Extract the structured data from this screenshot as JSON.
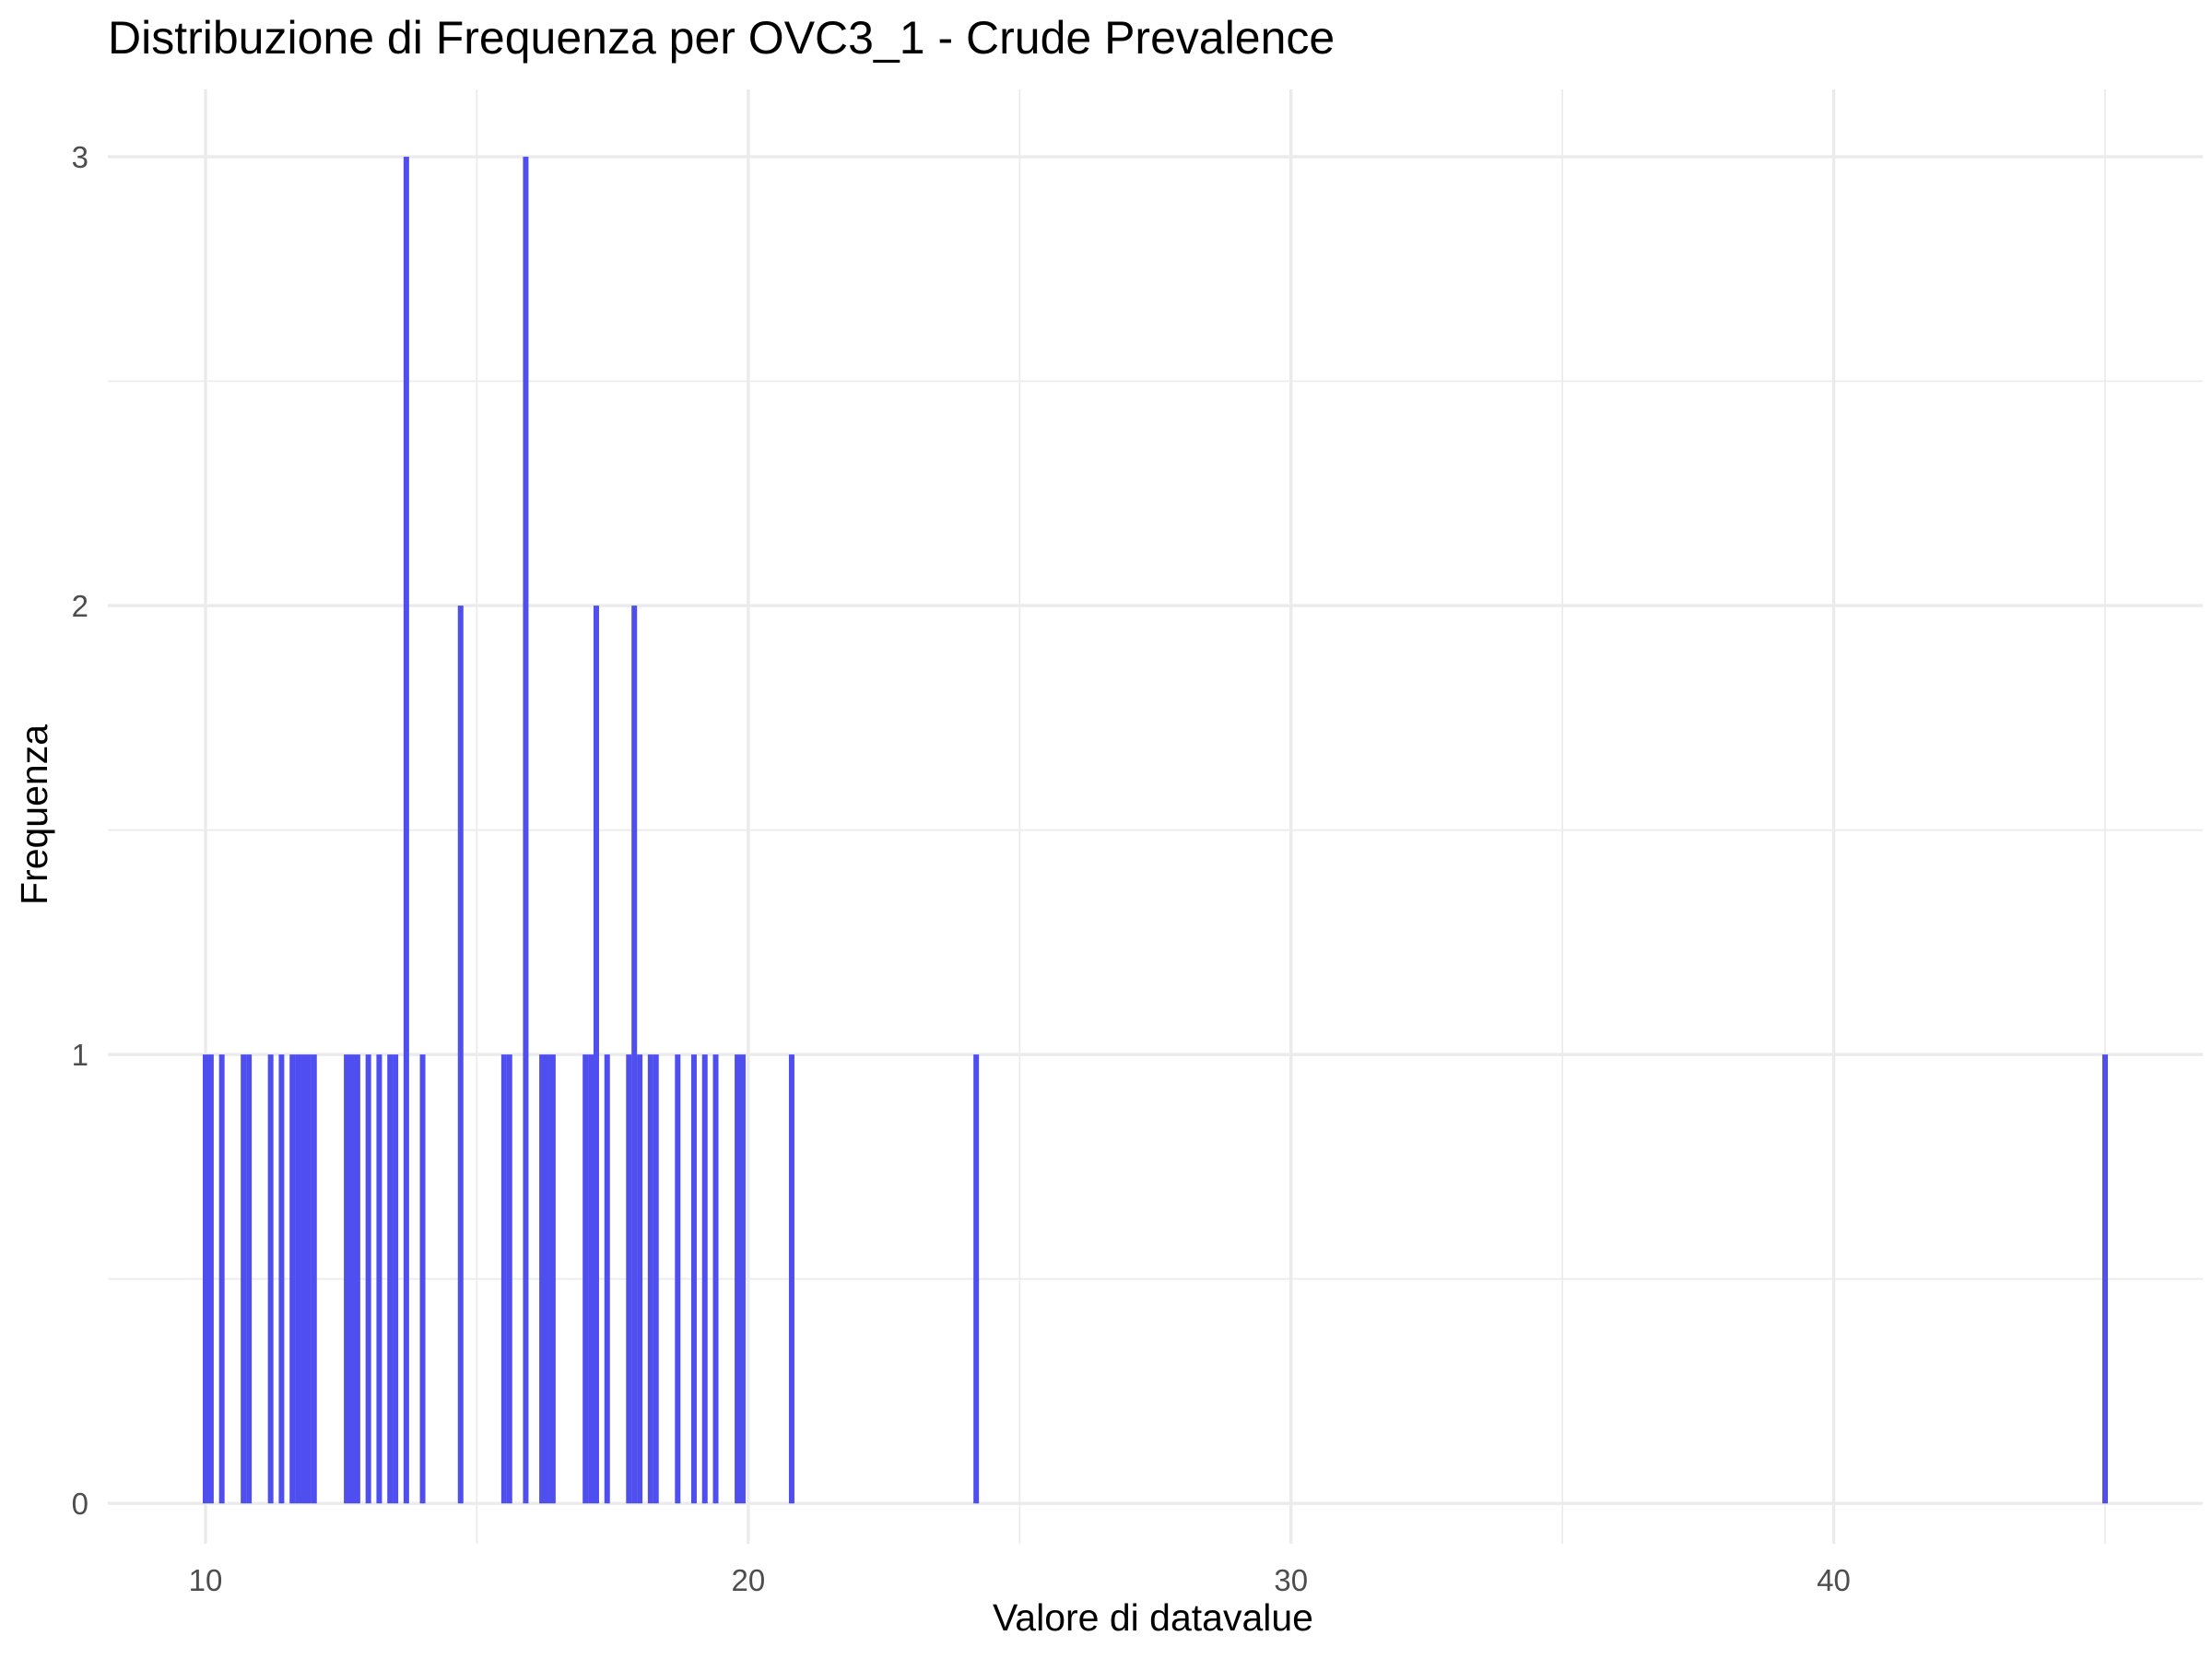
{
  "chart_data": {
    "type": "bar",
    "title": "Distribuzione di Frequenza per OVC3_1 - Crude Prevalence",
    "xlabel": "Valore di datavalue",
    "ylabel": "Frequenza",
    "xlim": [
      8.2,
      46.8
    ],
    "ylim": [
      -0.09,
      3.15
    ],
    "x_ticks": [
      10,
      20,
      30,
      40
    ],
    "x_tick_labels": [
      "10",
      "20",
      "30",
      "40"
    ],
    "y_ticks": [
      0,
      1,
      2,
      3
    ],
    "y_tick_labels": [
      "0",
      "1",
      "2",
      "3"
    ],
    "bar_color": "#4f4ff0",
    "grid": true,
    "bars": [
      {
        "x": 10.0,
        "count": 1
      },
      {
        "x": 10.1,
        "count": 1
      },
      {
        "x": 10.3,
        "count": 1
      },
      {
        "x": 10.7,
        "count": 1
      },
      {
        "x": 10.8,
        "count": 1
      },
      {
        "x": 11.2,
        "count": 1
      },
      {
        "x": 11.4,
        "count": 1
      },
      {
        "x": 11.6,
        "count": 1
      },
      {
        "x": 11.7,
        "count": 1
      },
      {
        "x": 11.8,
        "count": 1
      },
      {
        "x": 11.9,
        "count": 1
      },
      {
        "x": 12.0,
        "count": 1
      },
      {
        "x": 12.6,
        "count": 1
      },
      {
        "x": 12.7,
        "count": 1
      },
      {
        "x": 12.8,
        "count": 1
      },
      {
        "x": 13.0,
        "count": 1
      },
      {
        "x": 13.2,
        "count": 1
      },
      {
        "x": 13.4,
        "count": 1
      },
      {
        "x": 13.5,
        "count": 1
      },
      {
        "x": 13.7,
        "count": 3
      },
      {
        "x": 14.0,
        "count": 1
      },
      {
        "x": 14.7,
        "count": 2
      },
      {
        "x": 15.5,
        "count": 1
      },
      {
        "x": 15.6,
        "count": 1
      },
      {
        "x": 15.9,
        "count": 3
      },
      {
        "x": 16.2,
        "count": 1
      },
      {
        "x": 16.3,
        "count": 1
      },
      {
        "x": 16.4,
        "count": 1
      },
      {
        "x": 17.0,
        "count": 1
      },
      {
        "x": 17.1,
        "count": 1
      },
      {
        "x": 17.2,
        "count": 2
      },
      {
        "x": 17.4,
        "count": 1
      },
      {
        "x": 17.8,
        "count": 1
      },
      {
        "x": 17.9,
        "count": 2
      },
      {
        "x": 18.0,
        "count": 1
      },
      {
        "x": 18.2,
        "count": 1
      },
      {
        "x": 18.3,
        "count": 1
      },
      {
        "x": 18.7,
        "count": 1
      },
      {
        "x": 19.0,
        "count": 1
      },
      {
        "x": 19.2,
        "count": 1
      },
      {
        "x": 19.4,
        "count": 1
      },
      {
        "x": 19.8,
        "count": 1
      },
      {
        "x": 19.9,
        "count": 1
      },
      {
        "x": 20.8,
        "count": 1
      },
      {
        "x": 24.2,
        "count": 1
      },
      {
        "x": 45.0,
        "count": 1
      }
    ]
  }
}
